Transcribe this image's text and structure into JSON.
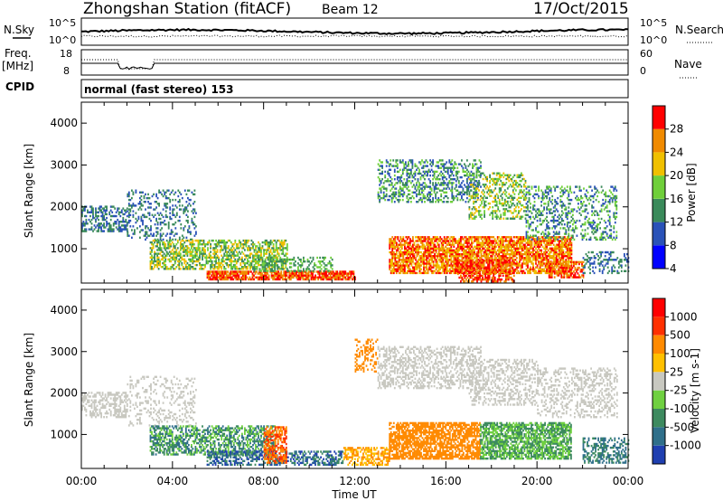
{
  "header": {
    "title": "Zhongshan Station (fitACF)",
    "beam": "Beam 12",
    "date": "17/Oct/2015"
  },
  "aux": {
    "nsky_label": "N.Sky",
    "nsearch_label": "N.Search",
    "noise_ticks": [
      "10^5",
      "10^0"
    ],
    "freq_label": "Freq.",
    "freq_unit": "[MHz]",
    "freq_ticks": [
      "18",
      "8"
    ],
    "nave_label": "Nave",
    "nave_ticks": [
      "60",
      "0"
    ],
    "cpid_label": "CPID",
    "cpid_text": "normal (fast stereo) 153"
  },
  "axes": {
    "ylabel": "Slant Range [km]",
    "xlabel": "Time UT"
  },
  "chart_data": [
    {
      "type": "heatmap",
      "panel": "power",
      "ylabel": "Slant Range [km]",
      "ylim": [
        180,
        4500
      ],
      "xlim": [
        0,
        24
      ],
      "x_ticks": [
        "00:00",
        "04:00",
        "08:00",
        "12:00",
        "16:00",
        "20:00",
        "00:00"
      ],
      "y_ticks": [
        1000,
        2000,
        3000,
        4000
      ],
      "colorbar_label": "Power [dB]",
      "colorbar_ticks": [
        "28",
        "24",
        "20",
        "16",
        "12",
        "8",
        "4"
      ],
      "colorbar_colors": [
        "#0000ff",
        "#2a52b8",
        "#3a8a5a",
        "#6fcf3a",
        "#f0c000",
        "#f08a00",
        "#ff0000"
      ]
    },
    {
      "type": "heatmap",
      "panel": "velocity",
      "ylabel": "Slant Range [km]",
      "ylim": [
        180,
        4500
      ],
      "xlim": [
        0,
        24
      ],
      "x_ticks": [
        "00:00",
        "04:00",
        "08:00",
        "12:00",
        "16:00",
        "20:00",
        "00:00"
      ],
      "y_ticks": [
        1000,
        2000,
        3000,
        4000
      ],
      "xlabel": "Time UT",
      "colorbar_label": "Velocity [m s-1]",
      "colorbar_ticks": [
        "1000",
        "500",
        "100",
        "25",
        "-25",
        "-100",
        "-500",
        "-1000"
      ],
      "colorbar_colors": [
        "#1f3fb0",
        "#2f6f8a",
        "#3d8a5f",
        "#6fd040",
        "#c8c8c0",
        "#ffc000",
        "#ff8a00",
        "#ff3000",
        "#ff0000"
      ]
    }
  ]
}
